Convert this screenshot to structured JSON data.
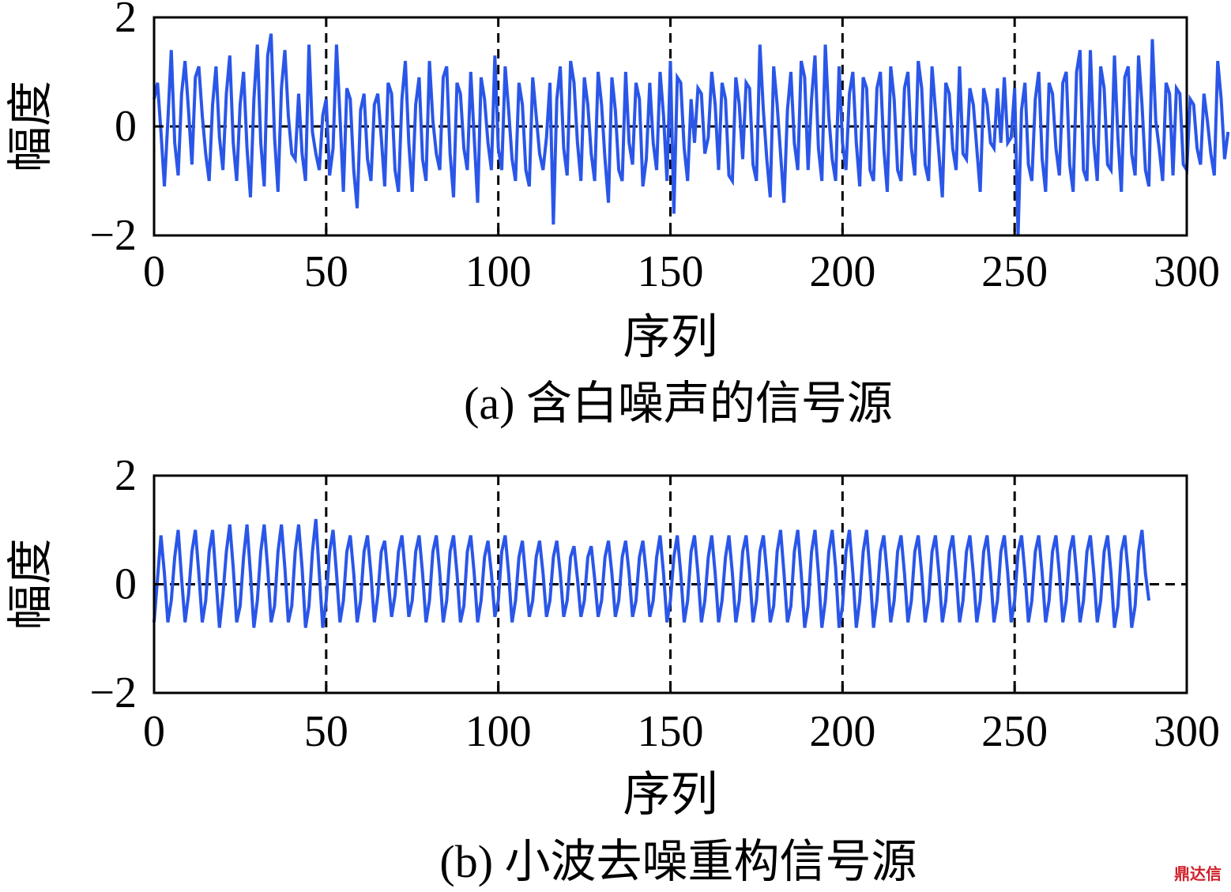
{
  "chart_data": [
    {
      "type": "line",
      "caption": "(a) 含白噪声的信号源",
      "xlabel": "序列",
      "ylabel": "幅度",
      "xlim": [
        0,
        300
      ],
      "ylim": [
        -2,
        2
      ],
      "xticks": [
        0,
        50,
        100,
        150,
        200,
        250,
        300
      ],
      "yticks": [
        -2,
        0,
        2
      ],
      "xtick_labels": [
        "0",
        "50",
        "100",
        "150",
        "200",
        "250",
        "300"
      ],
      "ytick_labels": [
        "−2",
        "0",
        "2"
      ],
      "grid": "dashed vertical lines at 50, 100, 150, 200, 250; dashed horizontal line at 0",
      "series": [
        {
          "color": "#2a56e8",
          "x_start": 0,
          "x_step": 1,
          "values": [
            0.5,
            0.8,
            -0.1,
            -1.1,
            0.1,
            1.4,
            -0.3,
            -0.9,
            0.6,
            1.2,
            0.3,
            -0.7,
            0.9,
            1.1,
            0.2,
            -0.5,
            -1.0,
            0.4,
            1.1,
            -0.2,
            -0.8,
            0.6,
            1.3,
            -0.3,
            -1.0,
            0.4,
            1.0,
            -0.4,
            -1.3,
            0.5,
            1.5,
            -0.3,
            -1.1,
            1.3,
            1.7,
            -0.2,
            -1.2,
            0.7,
            1.4,
            0.2,
            -0.5,
            -0.6,
            0.6,
            -0.5,
            -1.0,
            1.5,
            -0.1,
            -0.5,
            -0.8,
            0.2,
            0.5,
            -0.9,
            -0.4,
            1.5,
            0.2,
            -1.2,
            0.7,
            0.5,
            -0.8,
            -1.5,
            0.3,
            0.6,
            -0.6,
            -1.0,
            0.4,
            0.6,
            -0.2,
            -1.1,
            0.8,
            0.6,
            -0.8,
            -1.2,
            0.5,
            1.2,
            -0.3,
            -1.2,
            0.4,
            0.9,
            -0.6,
            -1.0,
            1.2,
            0.1,
            -0.5,
            -0.8,
            0.9,
            1.1,
            -0.5,
            -1.3,
            0.8,
            0.6,
            -0.4,
            -0.8,
            1.0,
            -0.2,
            -1.4,
            0.9,
            0.5,
            -0.3,
            -0.8,
            1.3,
            -0.4,
            -0.8,
            1.1,
            0.3,
            -0.6,
            -1.0,
            0.8,
            0.4,
            -0.8,
            -1.1,
            0.9,
            0.2,
            -0.5,
            -0.8,
            -0.2,
            0.8,
            -1.8,
            0.5,
            1.1,
            -0.4,
            -0.9,
            1.2,
            0.8,
            -0.3,
            -1.0,
            0.9,
            0.4,
            -0.5,
            -1.0,
            1.0,
            0.4,
            -0.6,
            -1.4,
            0.9,
            0.3,
            -0.8,
            -1.0,
            1.0,
            -0.3,
            -0.7,
            0.8,
            0.5,
            -1.1,
            -0.6,
            0.8,
            -0.3,
            -0.8,
            1.0,
            0.2,
            -1.0,
            1.2,
            -1.6,
            0.9,
            0.8,
            -0.4,
            -1.0,
            0.5,
            -0.3,
            0.7,
            0.6,
            -0.5,
            -0.2,
            1.0,
            0.4,
            -0.8,
            0.8,
            0.5,
            -0.9,
            -1.0,
            0.9,
            0.4,
            -0.6,
            0.8,
            0.7,
            -0.7,
            -1.0,
            1.5,
            0.3,
            -0.6,
            -1.3,
            1.1,
            0.4,
            -0.5,
            -1.4,
            0.3,
            1.0,
            -0.3,
            -0.8,
            1.2,
            0.9,
            -0.8,
            0.5,
            1.3,
            -0.4,
            -1.0,
            1.5,
            0.2,
            -0.6,
            -1.0,
            1.1,
            -0.3,
            -0.8,
            0.6,
            1.0,
            -0.3,
            -1.1,
            0.9,
            0.7,
            -0.8,
            -1.0,
            0.7,
            1.0,
            -0.4,
            -1.2,
            1.1,
            0.5,
            -0.8,
            -1.0,
            0.7,
            1.0,
            -0.4,
            -0.9,
            1.2,
            0.7,
            -0.7,
            -1.0,
            1.1,
            0.3,
            -0.5,
            -1.3,
            0.8,
            0.6,
            -0.4,
            -0.8,
            1.1,
            -0.5,
            -0.6,
            0.7,
            0.4,
            -0.4,
            -1.2,
            0.7,
            0.4,
            -0.3,
            -0.4,
            0.7,
            -0.3,
            0.9,
            -0.3,
            -0.2,
            0.7,
            -2.0,
            0.3,
            0.8,
            -0.7,
            -1.0,
            0.5,
            1.0,
            -0.6,
            -1.2,
            0.8,
            0.6,
            -0.4,
            -0.9,
            0.8,
            1.0,
            -0.7,
            -1.2,
            1.0,
            1.4,
            -0.8,
            -1.0,
            1.4,
            -0.3,
            -1.0,
            1.1,
            0.7,
            -0.7,
            -0.8,
            1.3,
            -0.2,
            -1.2,
            0.9,
            1.1,
            -0.5,
            -0.9,
            1.3,
            0.4,
            -0.8,
            -1.1,
            1.6,
            0.1,
            -0.4,
            -1.0,
            0.8,
            0.6,
            -0.9,
            0.7,
            0.6,
            -0.7,
            -0.8,
            0.5,
            0.4,
            -0.4,
            -0.7,
            0.6,
            0.1,
            -0.5,
            -0.9,
            1.2,
            0.5,
            -0.6,
            -0.1
          ]
        }
      ]
    },
    {
      "type": "line",
      "caption": "(b) 小波去噪重构信号源",
      "xlabel": "序列",
      "ylabel": "幅度",
      "xlim": [
        0,
        300
      ],
      "ylim": [
        -2,
        2
      ],
      "xticks": [
        0,
        50,
        100,
        150,
        200,
        250,
        300
      ],
      "yticks": [
        -2,
        0,
        2
      ],
      "xtick_labels": [
        "0",
        "50",
        "100",
        "150",
        "200",
        "250",
        "300"
      ],
      "ytick_labels": [
        "−2",
        "0",
        "2"
      ],
      "grid": "dashed vertical lines at 50, 100, 150, 200, 250; dashed horizontal line at 0",
      "series": [
        {
          "color": "#2a56e8",
          "x_start": 0,
          "x_step": 1,
          "values": [
            -0.7,
            0.1,
            0.9,
            0.2,
            -0.7,
            -0.3,
            0.5,
            1.0,
            0.1,
            -0.7,
            -0.2,
            0.6,
            1.0,
            0.2,
            -0.7,
            -0.3,
            0.6,
            1.0,
            0.1,
            -0.8,
            -0.2,
            0.6,
            1.1,
            0.3,
            -0.7,
            -0.4,
            0.5,
            1.1,
            0.2,
            -0.8,
            -0.3,
            0.6,
            1.1,
            0.3,
            -0.7,
            -0.4,
            0.6,
            1.1,
            0.3,
            -0.7,
            -0.4,
            0.6,
            1.1,
            0.3,
            -0.8,
            -0.4,
            0.6,
            1.2,
            0.2,
            -0.8,
            -0.3,
            0.6,
            1.0,
            0.2,
            -0.7,
            -0.3,
            0.6,
            0.9,
            0.2,
            -0.7,
            -0.3,
            0.6,
            0.9,
            0.2,
            -0.7,
            -0.2,
            0.6,
            0.8,
            0.1,
            -0.6,
            -0.2,
            0.6,
            0.9,
            0.2,
            -0.6,
            -0.3,
            0.6,
            0.9,
            0.2,
            -0.7,
            -0.3,
            0.6,
            0.9,
            0.2,
            -0.7,
            -0.3,
            0.6,
            0.9,
            0.2,
            -0.7,
            -0.4,
            0.6,
            0.9,
            0.2,
            -0.7,
            -0.3,
            0.5,
            0.8,
            0.2,
            -0.6,
            -0.3,
            0.6,
            0.9,
            0.2,
            -0.7,
            -0.3,
            0.5,
            0.8,
            0.1,
            -0.6,
            -0.3,
            0.5,
            0.8,
            0.2,
            -0.6,
            -0.3,
            0.5,
            0.8,
            0.2,
            -0.6,
            -0.3,
            0.5,
            0.7,
            0.1,
            -0.6,
            -0.3,
            0.5,
            0.7,
            0.1,
            -0.6,
            -0.3,
            0.5,
            0.8,
            0.2,
            -0.6,
            -0.3,
            0.5,
            0.8,
            0.2,
            -0.6,
            -0.3,
            0.5,
            0.8,
            0.2,
            -0.6,
            -0.3,
            0.5,
            0.9,
            0.2,
            -0.7,
            -0.3,
            0.5,
            0.9,
            0.2,
            -0.7,
            -0.3,
            0.6,
            0.9,
            0.2,
            -0.7,
            -0.3,
            0.5,
            0.9,
            0.2,
            -0.7,
            -0.3,
            0.5,
            0.9,
            0.2,
            -0.7,
            -0.3,
            0.6,
            0.9,
            0.2,
            -0.7,
            -0.3,
            0.6,
            0.9,
            0.2,
            -0.7,
            -0.4,
            0.6,
            1.0,
            0.2,
            -0.7,
            -0.4,
            0.6,
            1.0,
            0.2,
            -0.8,
            -0.4,
            0.6,
            1.0,
            0.2,
            -0.8,
            -0.3,
            0.6,
            1.0,
            0.3,
            -0.8,
            -0.4,
            0.6,
            1.0,
            0.2,
            -0.8,
            -0.3,
            0.6,
            1.0,
            0.2,
            -0.8,
            -0.3,
            0.6,
            0.9,
            0.2,
            -0.7,
            -0.3,
            0.6,
            0.9,
            0.2,
            -0.7,
            -0.3,
            0.6,
            0.9,
            0.2,
            -0.7,
            -0.3,
            0.6,
            0.9,
            0.2,
            -0.7,
            -0.3,
            0.6,
            0.9,
            0.2,
            -0.7,
            -0.3,
            0.6,
            0.9,
            0.2,
            -0.7,
            -0.3,
            0.6,
            0.9,
            0.2,
            -0.7,
            -0.3,
            0.6,
            0.9,
            0.2,
            -0.7,
            -0.3,
            0.6,
            0.9,
            0.2,
            -0.7,
            -0.3,
            0.6,
            0.9,
            0.2,
            -0.7,
            -0.3,
            0.6,
            0.9,
            0.2,
            -0.7,
            -0.3,
            0.6,
            0.9,
            0.2,
            -0.7,
            -0.3,
            0.6,
            0.9,
            0.2,
            -0.7,
            -0.3,
            0.6,
            0.9,
            0.2,
            -0.8,
            -0.4,
            0.6,
            0.9,
            0.2,
            -0.8,
            -0.4,
            0.6,
            1.0,
            0.2,
            -0.3
          ]
        }
      ]
    }
  ],
  "watermark": "鼎达信"
}
